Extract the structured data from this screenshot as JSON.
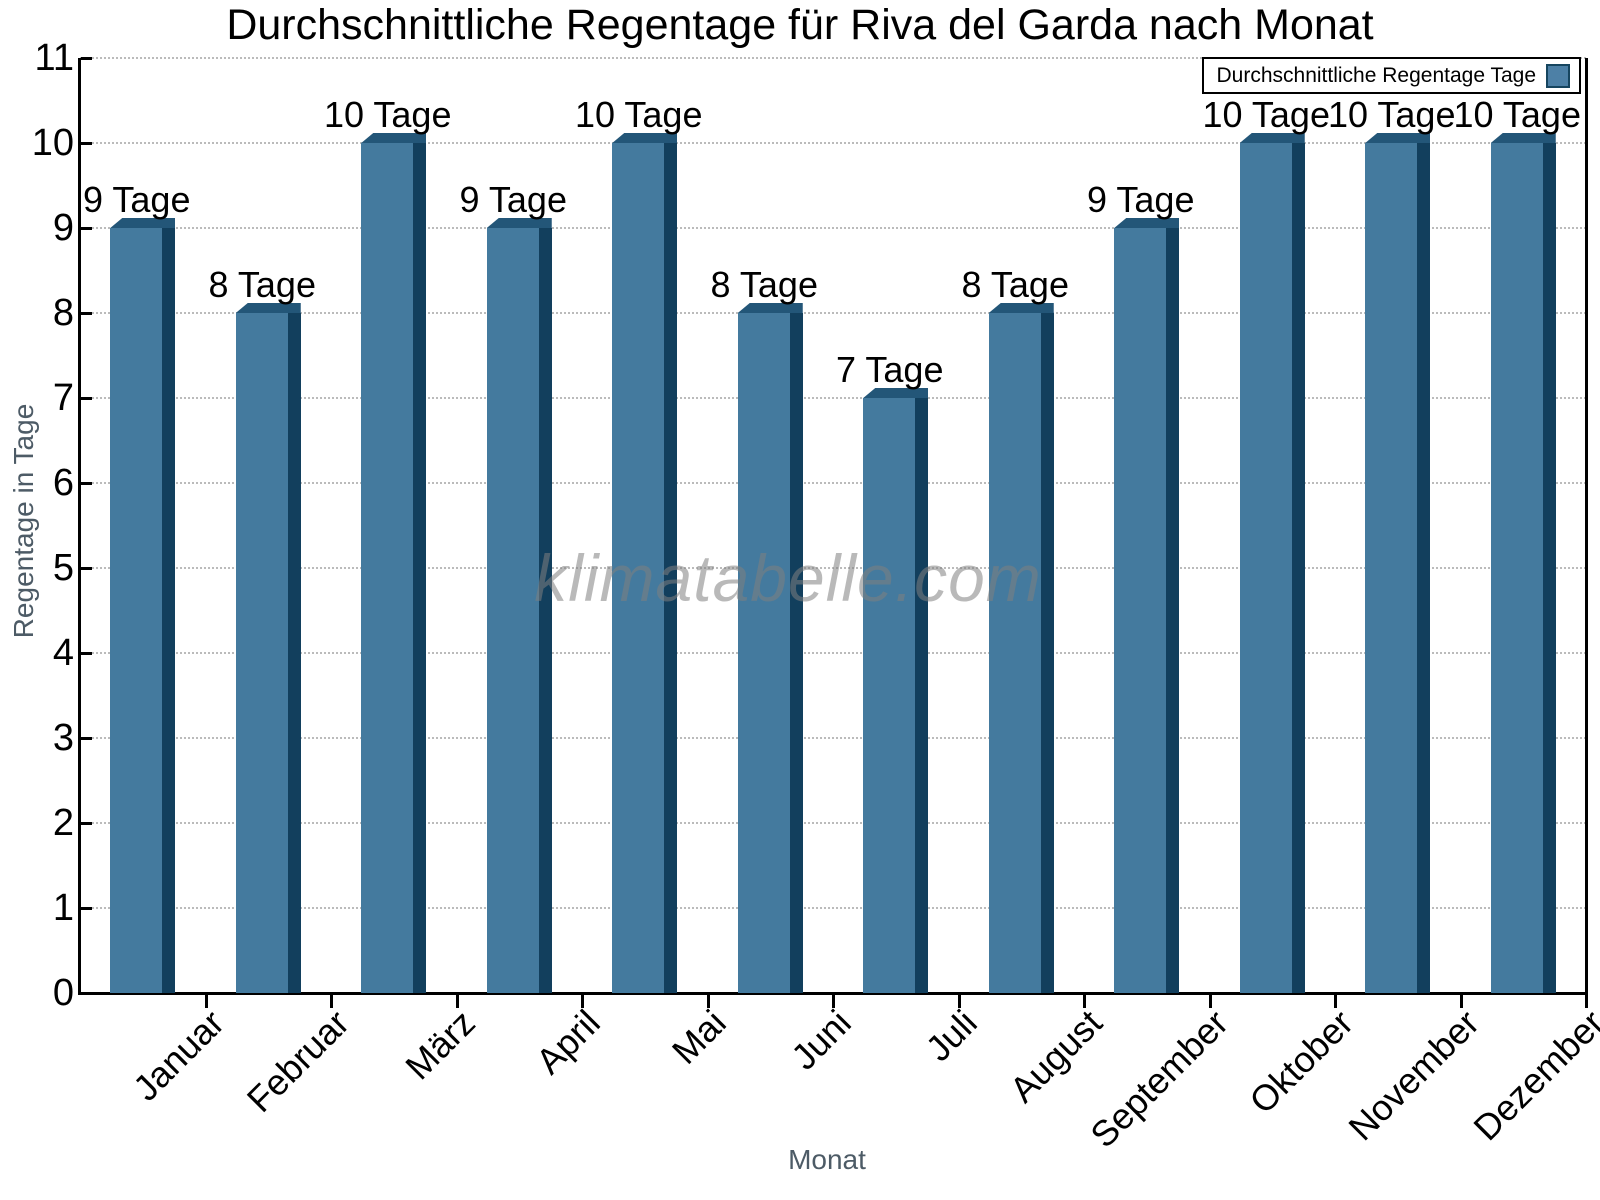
{
  "title": "Durchschnittliche Regentage für Riva del Garda nach Monat",
  "watermark": "klimatabelle.com",
  "legend": {
    "label": "Durchschnittliche Regentage Tage"
  },
  "axes": {
    "xlabel": "Monat",
    "ylabel": "Regentage in Tage"
  },
  "chart_data": {
    "type": "bar",
    "title": "Durchschnittliche Regentage für Riva del Garda nach Monat",
    "xlabel": "Monat",
    "ylabel": "Regentage in Tage",
    "categories": [
      "Januar",
      "Februar",
      "März",
      "April",
      "Mai",
      "Juni",
      "Juli",
      "August",
      "September",
      "Oktober",
      "November",
      "Dezember"
    ],
    "values": [
      9,
      8,
      10,
      9,
      10,
      8,
      7,
      8,
      9,
      10,
      10,
      10
    ],
    "bar_labels": [
      "9 Tage",
      "8 Tage",
      "10 Tage",
      "9 Tage",
      "10 Tage",
      "8 Tage",
      "7 Tage",
      "8 Tage",
      "9 Tage",
      "10 Tage",
      "10 Tage",
      "10 Tage"
    ],
    "unit_suffix": "Tage",
    "ylim": [
      0,
      11
    ],
    "yticks": [
      0,
      1,
      2,
      3,
      4,
      5,
      6,
      7,
      8,
      9,
      10,
      11
    ],
    "legend": "Durchschnittliche Regentage Tage",
    "legend_position": "top-right",
    "grid": "horizontal-dotted",
    "bar_style": "3d-bevel",
    "colors": {
      "bar_face": "#447a9e",
      "bar_side": "#123f5d",
      "bar_top": "#235678",
      "grid": "#bbbbbb",
      "axis": "#000000",
      "axis_title": "#4d5b66",
      "tick_label": "#000000",
      "watermark": "#9a9a9a",
      "legend_swatch": "#4d80a6",
      "legend_swatch_border": "#16455f"
    }
  }
}
